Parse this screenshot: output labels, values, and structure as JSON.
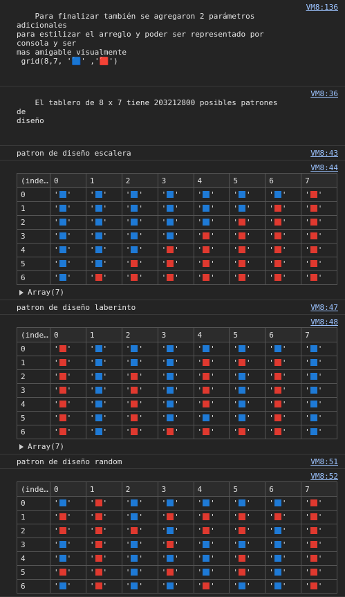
{
  "colors": {
    "blue": "#1e7ad6",
    "red": "#e0392f"
  },
  "messages": {
    "intro": {
      "text": "Para finalizar también se agregaron 2 parámetros adicionales\npara estilizar el arreglo y poder ser representado por consola y ser\nmas amigable visualmente\n grid(8,7, '🟦' ,'🟥')",
      "source": "VM8:136"
    },
    "board": {
      "text": "El tablero de 8 x 7 tiene 203212800 posibles patrones de\ndiseño",
      "source": "VM8:36"
    }
  },
  "tables": [
    {
      "title": "patron de diseño escalera",
      "title_source": "VM8:43",
      "table_source": "VM8:44",
      "index_header": "(inde…",
      "columns": [
        "0",
        "1",
        "2",
        "3",
        "4",
        "5",
        "6",
        "7"
      ],
      "rows": [
        {
          "index": "0",
          "cells": [
            "B",
            "B",
            "B",
            "B",
            "B",
            "B",
            "B",
            "R"
          ]
        },
        {
          "index": "1",
          "cells": [
            "B",
            "B",
            "B",
            "B",
            "B",
            "B",
            "R",
            "R"
          ]
        },
        {
          "index": "2",
          "cells": [
            "B",
            "B",
            "B",
            "B",
            "B",
            "R",
            "R",
            "R"
          ]
        },
        {
          "index": "3",
          "cells": [
            "B",
            "B",
            "B",
            "B",
            "R",
            "R",
            "R",
            "R"
          ]
        },
        {
          "index": "4",
          "cells": [
            "B",
            "B",
            "B",
            "R",
            "R",
            "R",
            "R",
            "R"
          ]
        },
        {
          "index": "5",
          "cells": [
            "B",
            "B",
            "R",
            "R",
            "R",
            "R",
            "R",
            "R"
          ]
        },
        {
          "index": "6",
          "cells": [
            "B",
            "R",
            "R",
            "R",
            "R",
            "R",
            "R",
            "R"
          ]
        }
      ],
      "array_label": "Array(7)"
    },
    {
      "title": "patron de diseño laberinto",
      "title_source": "VM8:47",
      "table_source": "VM8:48",
      "index_header": "(inde…",
      "columns": [
        "0",
        "1",
        "2",
        "3",
        "4",
        "5",
        "6",
        "7"
      ],
      "rows": [
        {
          "index": "0",
          "cells": [
            "R",
            "B",
            "B",
            "B",
            "B",
            "B",
            "B",
            "B"
          ]
        },
        {
          "index": "1",
          "cells": [
            "R",
            "B",
            "B",
            "B",
            "R",
            "R",
            "R",
            "B"
          ]
        },
        {
          "index": "2",
          "cells": [
            "R",
            "B",
            "R",
            "B",
            "R",
            "B",
            "R",
            "B"
          ]
        },
        {
          "index": "3",
          "cells": [
            "R",
            "B",
            "R",
            "B",
            "R",
            "B",
            "R",
            "B"
          ]
        },
        {
          "index": "4",
          "cells": [
            "R",
            "B",
            "R",
            "B",
            "R",
            "B",
            "R",
            "B"
          ]
        },
        {
          "index": "5",
          "cells": [
            "R",
            "B",
            "R",
            "B",
            "B",
            "B",
            "R",
            "B"
          ]
        },
        {
          "index": "6",
          "cells": [
            "R",
            "B",
            "R",
            "R",
            "R",
            "R",
            "R",
            "B"
          ]
        }
      ],
      "array_label": "Array(7)"
    },
    {
      "title": "patron de diseño random",
      "title_source": "VM8:51",
      "table_source": "VM8:52",
      "index_header": "(inde…",
      "columns": [
        "0",
        "1",
        "2",
        "3",
        "4",
        "5",
        "6",
        "7"
      ],
      "rows": [
        {
          "index": "0",
          "cells": [
            "B",
            "R",
            "B",
            "B",
            "B",
            "B",
            "B",
            "R"
          ]
        },
        {
          "index": "1",
          "cells": [
            "R",
            "R",
            "B",
            "R",
            "R",
            "R",
            "R",
            "R"
          ]
        },
        {
          "index": "2",
          "cells": [
            "R",
            "R",
            "R",
            "B",
            "R",
            "R",
            "B",
            "R"
          ]
        },
        {
          "index": "3",
          "cells": [
            "B",
            "R",
            "B",
            "R",
            "B",
            "B",
            "B",
            "R"
          ]
        },
        {
          "index": "4",
          "cells": [
            "B",
            "R",
            "B",
            "B",
            "B",
            "R",
            "B",
            "R"
          ]
        },
        {
          "index": "5",
          "cells": [
            "R",
            "R",
            "B",
            "R",
            "B",
            "R",
            "B",
            "R"
          ]
        },
        {
          "index": "6",
          "cells": [
            "B",
            "R",
            "B",
            "B",
            "R",
            "B",
            "B",
            "R"
          ]
        }
      ]
    }
  ]
}
